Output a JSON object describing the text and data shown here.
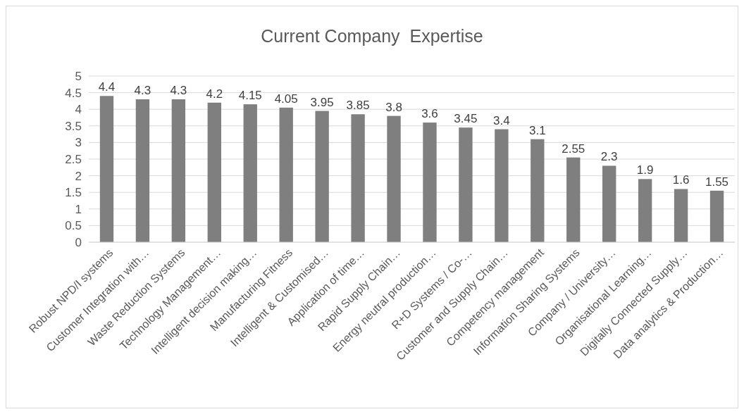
{
  "chart_data": {
    "type": "bar",
    "title": "Current Company  Expertise",
    "categories": [
      "Robust NPD/I systems",
      "Customer Integration with…",
      "Waste Reduction Systems",
      "Technology Management…",
      "Intelligent decision making…",
      "Manufacturing Fitness",
      "Intelligent & Customised…",
      "Application of time…",
      "Rapid Supply Chain…",
      "Energy neutral production…",
      "R+D Systems / Co-…",
      "Customer and Supply Chain…",
      "Competency management",
      "Information Sharing Systems",
      "Company / University…",
      "Organisational Learning…",
      "Digitally Connected Supply…",
      "Data analytics & Production…"
    ],
    "values": [
      4.4,
      4.3,
      4.3,
      4.2,
      4.15,
      4.05,
      3.95,
      3.85,
      3.8,
      3.6,
      3.45,
      3.4,
      3.1,
      2.55,
      2.3,
      1.9,
      1.6,
      1.55
    ],
    "color": "#7f7f7f",
    "ylim": [
      0,
      5
    ],
    "yticks": [
      0,
      0.5,
      1,
      1.5,
      2,
      2.5,
      3,
      3.5,
      4,
      4.5,
      5
    ],
    "grid": "y",
    "data_labels": true
  }
}
